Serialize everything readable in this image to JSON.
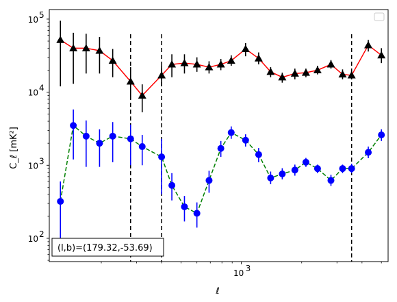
{
  "chart_data": {
    "type": "scatter",
    "xscale": "log",
    "yscale": "log",
    "xlim": [
      110,
      5400
    ],
    "ylim": [
      48,
      135000
    ],
    "xlabel": "ℓ",
    "ylabel": "C_ℓ  [mK²]",
    "x_ticks": [
      {
        "value": 1000,
        "label": "10",
        "exp": "3"
      }
    ],
    "y_ticks": [
      {
        "value": 100,
        "label": "10",
        "exp": "2"
      },
      {
        "value": 1000,
        "label": "10",
        "exp": "3"
      },
      {
        "value": 10000,
        "label": "10",
        "exp": "4"
      },
      {
        "value": 100000,
        "label": "10",
        "exp": "5"
      }
    ],
    "annotation": "(l,b)=(179.32,-53.69)",
    "vlines": [
      280,
      400,
      3550
    ],
    "legend": {
      "location": "upper right",
      "entries": []
    },
    "series": [
      {
        "color": "#ff0000",
        "line_style": "solid",
        "marker": "triangle",
        "marker_color": "#000000",
        "errorbar_color": "#000000",
        "x": [
          125,
          145,
          168,
          196,
          228,
          280,
          320,
          400,
          450,
          520,
          600,
          690,
          790,
          890,
          1050,
          1220,
          1400,
          1600,
          1850,
          2100,
          2400,
          2800,
          3200,
          3550,
          4300,
          5000
        ],
        "y": [
          52000,
          40000,
          40000,
          37000,
          27000,
          14000,
          9000,
          17000,
          24000,
          25000,
          24000,
          22000,
          24000,
          27000,
          39000,
          29000,
          19000,
          16000,
          18000,
          18500,
          20000,
          24000,
          17500,
          17000,
          44000,
          32000
        ],
        "y_err_low": [
          40000,
          27000,
          22000,
          19000,
          11000,
          6000,
          3700,
          5000,
          8000,
          7000,
          5000,
          4000,
          4000,
          4000,
          8000,
          5000,
          3000,
          2500,
          3000,
          2500,
          2500,
          3000,
          2500,
          2000,
          8000,
          7000
        ],
        "y_err_high": [
          43000,
          25000,
          23000,
          20000,
          12000,
          8000,
          3800,
          6000,
          9000,
          8000,
          6000,
          4500,
          4500,
          5000,
          8000,
          6000,
          3000,
          2500,
          3000,
          2500,
          3000,
          3500,
          3000,
          2500,
          8000,
          8000
        ]
      },
      {
        "color": "#008000",
        "line_style": "dashed",
        "marker": "circle",
        "marker_color": "#0000ff",
        "errorbar_color": "#0000ff",
        "x": [
          125,
          145,
          168,
          196,
          228,
          280,
          320,
          400,
          450,
          520,
          600,
          690,
          790,
          890,
          1050,
          1220,
          1400,
          1600,
          1850,
          2100,
          2400,
          2800,
          3200,
          3550,
          4300,
          5000
        ],
        "y": [
          320,
          3500,
          2500,
          2000,
          2500,
          2300,
          1800,
          1300,
          530,
          270,
          220,
          620,
          1700,
          2800,
          2200,
          1400,
          670,
          760,
          860,
          1100,
          900,
          620,
          900,
          900,
          1500,
          2600
        ],
        "y_err_low": [
          230,
          2300,
          1550,
          1050,
          1400,
          1300,
          800,
          900,
          200,
          100,
          80,
          200,
          400,
          500,
          400,
          300,
          120,
          120,
          140,
          150,
          120,
          100,
          120,
          120,
          250,
          450
        ],
        "y_err_high": [
          280,
          2300,
          1600,
          1100,
          1400,
          1300,
          800,
          1000,
          250,
          110,
          90,
          220,
          450,
          600,
          450,
          320,
          150,
          150,
          160,
          160,
          120,
          120,
          120,
          150,
          300,
          500
        ]
      }
    ]
  }
}
